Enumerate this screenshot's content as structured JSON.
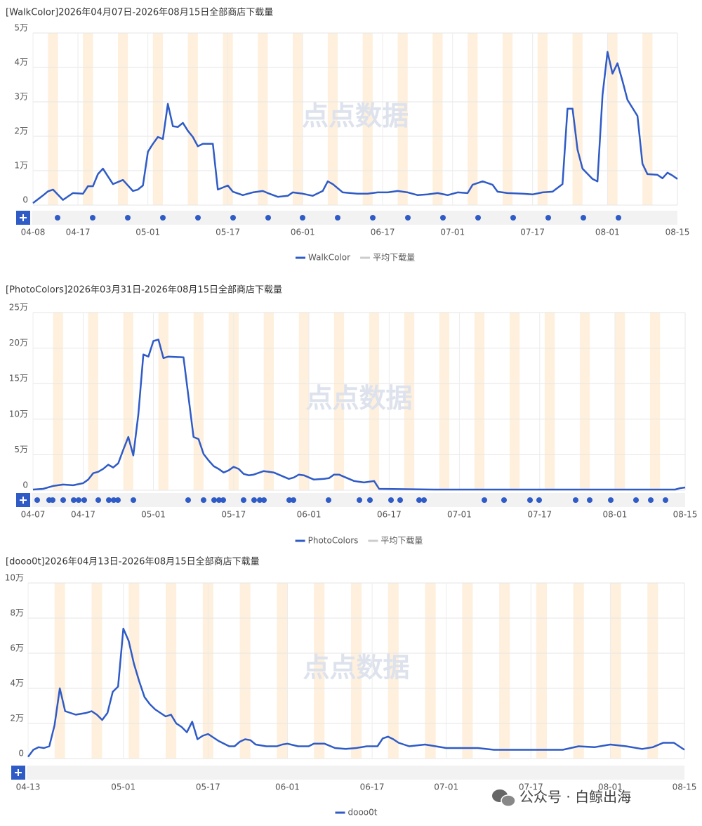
{
  "chart_data": [
    {
      "type": "line",
      "title": "[WalkColor]2026年04月07日-2026年08月15日全部商店下载量",
      "watermark": "点点数据",
      "x": [
        "04-08",
        "04-10",
        "04-11",
        "04-12",
        "04-14",
        "04-16",
        "04-18",
        "04-19",
        "04-20",
        "04-21",
        "04-22",
        "04-24",
        "04-26",
        "04-28",
        "04-29",
        "04-30",
        "05-01",
        "05-02",
        "05-03",
        "05-04",
        "05-05",
        "05-06",
        "05-07",
        "05-08",
        "05-09",
        "05-10",
        "05-11",
        "05-12",
        "05-14",
        "05-15",
        "05-17",
        "05-18",
        "05-20",
        "05-22",
        "05-24",
        "05-25",
        "05-27",
        "05-29",
        "05-30",
        "06-01",
        "06-03",
        "06-05",
        "06-06",
        "06-07",
        "06-09",
        "06-12",
        "06-14",
        "06-16",
        "06-18",
        "06-20",
        "06-22",
        "06-24",
        "06-26",
        "06-28",
        "06-30",
        "07-02",
        "07-04",
        "07-05",
        "07-07",
        "07-09",
        "07-10",
        "07-12",
        "07-15",
        "07-17",
        "07-19",
        "07-21",
        "07-23",
        "07-24",
        "07-25",
        "07-26",
        "07-27",
        "07-29",
        "07-30",
        "07-31",
        "08-01",
        "08-02",
        "08-03",
        "08-04",
        "08-05",
        "08-07",
        "08-08",
        "08-09",
        "08-11",
        "08-12",
        "08-13",
        "08-14",
        "08-15"
      ],
      "series": [
        {
          "name": "WalkColor",
          "color": "#2f5bc7",
          "values": [
            600,
            2800,
            4000,
            4500,
            1500,
            3500,
            3300,
            5500,
            5500,
            9000,
            10600,
            6100,
            7300,
            4100,
            4500,
            5700,
            15500,
            17800,
            19800,
            19200,
            29400,
            22900,
            22700,
            23900,
            21600,
            19800,
            17100,
            17800,
            17800,
            4500,
            5700,
            3900,
            2900,
            3700,
            4100,
            3500,
            2400,
            2700,
            3700,
            3300,
            2700,
            4100,
            6900,
            6100,
            3700,
            3300,
            3300,
            3700,
            3700,
            4100,
            3700,
            2900,
            3100,
            3500,
            2900,
            3700,
            3500,
            5900,
            6900,
            5900,
            3900,
            3500,
            3300,
            3100,
            3700,
            3900,
            6100,
            28000,
            28000,
            16100,
            10600,
            7600,
            6900,
            32000,
            44500,
            38200,
            41200,
            36100,
            30600,
            25900,
            12000,
            9000,
            8800,
            7800,
            9400,
            8600,
            7600
          ]
        }
      ],
      "legend_inactive": [
        {
          "name": "平均下载量",
          "color": "#cccccc"
        }
      ],
      "xlim": [
        "04-08",
        "08-15"
      ],
      "xticks": [
        "04-08",
        "04-17",
        "05-01",
        "05-17",
        "06-01",
        "06-17",
        "07-01",
        "07-17",
        "08-01",
        "08-15"
      ],
      "ylim": [
        0,
        50000
      ],
      "yticks": [
        0,
        {
          "value": 10000,
          "label": "1万"
        },
        {
          "value": 20000,
          "label": "2万"
        },
        {
          "value": 30000,
          "label": "3万"
        },
        {
          "value": 40000,
          "label": "4万"
        },
        {
          "value": 50000,
          "label": "5万"
        }
      ],
      "grid": true
    },
    {
      "type": "line",
      "title": "[PhotoColors]2026年03月31日-2026年08月15日全部商店下载量",
      "watermark": "点点数据",
      "x": [
        "04-07",
        "04-09",
        "04-11",
        "04-13",
        "04-15",
        "04-17",
        "04-18",
        "04-19",
        "04-20",
        "04-21",
        "04-22",
        "04-23",
        "04-24",
        "04-25",
        "04-26",
        "04-27",
        "04-28",
        "04-29",
        "04-30",
        "05-01",
        "05-02",
        "05-03",
        "05-04",
        "05-07",
        "05-09",
        "05-10",
        "05-11",
        "05-12",
        "05-13",
        "05-14",
        "05-15",
        "05-16",
        "05-17",
        "05-18",
        "05-19",
        "05-20",
        "05-21",
        "05-23",
        "05-25",
        "05-27",
        "05-28",
        "05-29",
        "05-30",
        "05-31",
        "06-02",
        "06-04",
        "06-05",
        "06-06",
        "06-07",
        "06-08",
        "06-10",
        "06-12",
        "06-14",
        "06-15",
        "06-26",
        "07-16",
        "08-05",
        "08-13",
        "08-14",
        "08-15"
      ],
      "series": [
        {
          "name": "PhotoColors",
          "color": "#2f5bc7",
          "values": [
            1000,
            2000,
            6000,
            8000,
            7000,
            10000,
            15000,
            24000,
            26000,
            30000,
            36000,
            32000,
            38000,
            57000,
            75000,
            49000,
            107000,
            191000,
            188000,
            210000,
            212000,
            186000,
            188000,
            187000,
            75000,
            72000,
            51000,
            42000,
            34000,
            30000,
            25000,
            28000,
            33000,
            30000,
            23000,
            21000,
            22000,
            27000,
            25000,
            19000,
            16000,
            18000,
            22000,
            21000,
            15000,
            16000,
            17000,
            22000,
            22000,
            19000,
            13000,
            11000,
            13000,
            2000,
            1000,
            1000,
            1000,
            1000,
            3000,
            4000
          ]
        }
      ],
      "legend_inactive": [
        {
          "name": "平均下载量",
          "color": "#cccccc"
        }
      ],
      "xlim": [
        "04-07",
        "08-15"
      ],
      "xticks": [
        "04-07",
        "04-17",
        "05-01",
        "05-17",
        "06-01",
        "06-17",
        "07-01",
        "07-17",
        "08-01",
        "08-15"
      ],
      "ylim": [
        0,
        250000
      ],
      "yticks": [
        0,
        {
          "value": 50000,
          "label": "5万"
        },
        {
          "value": 100000,
          "label": "10万"
        },
        {
          "value": 150000,
          "label": "15万"
        },
        {
          "value": 200000,
          "label": "20万"
        },
        {
          "value": 250000,
          "label": "25万"
        }
      ],
      "grid": true
    },
    {
      "type": "line",
      "title": "[dooo0t]2026年04月13日-2026年08月15日全部商店下载量",
      "watermark": "点点数据",
      "x": [
        "04-13",
        "04-14",
        "04-15",
        "04-16",
        "04-17",
        "04-18",
        "04-19",
        "04-20",
        "04-21",
        "04-22",
        "04-24",
        "04-25",
        "04-26",
        "04-27",
        "04-28",
        "04-29",
        "04-30",
        "05-01",
        "05-02",
        "05-03",
        "05-04",
        "05-05",
        "05-06",
        "05-07",
        "05-08",
        "05-09",
        "05-10",
        "05-11",
        "05-12",
        "05-13",
        "05-14",
        "05-15",
        "05-16",
        "05-17",
        "05-19",
        "05-21",
        "05-22",
        "05-23",
        "05-24",
        "05-25",
        "05-26",
        "05-28",
        "05-30",
        "05-31",
        "06-01",
        "06-03",
        "06-05",
        "06-06",
        "06-08",
        "06-10",
        "06-12",
        "06-14",
        "06-16",
        "06-18",
        "06-19",
        "06-20",
        "06-21",
        "06-22",
        "06-24",
        "06-27",
        "06-29",
        "07-01",
        "07-04",
        "07-07",
        "07-10",
        "07-14",
        "07-17",
        "07-20",
        "07-23",
        "07-26",
        "07-29",
        "08-01",
        "08-04",
        "08-07",
        "08-09",
        "08-11",
        "08-13",
        "08-15"
      ],
      "series": [
        {
          "name": "dooo0t",
          "color": "#2f5bc7",
          "values": [
            1000,
            5000,
            6500,
            6000,
            7000,
            19000,
            40000,
            27000,
            26000,
            25000,
            26000,
            27000,
            25000,
            22000,
            26000,
            38000,
            41000,
            74000,
            67000,
            54000,
            44000,
            35000,
            31000,
            28000,
            26000,
            24000,
            25000,
            20000,
            18000,
            15000,
            21000,
            11000,
            13000,
            14000,
            10000,
            7000,
            7000,
            9600,
            11000,
            10500,
            8000,
            7000,
            7000,
            8000,
            8500,
            7000,
            7000,
            8500,
            8500,
            6000,
            5500,
            6000,
            7000,
            7000,
            11500,
            12500,
            11000,
            9000,
            7000,
            8000,
            7000,
            6000,
            6000,
            6000,
            5000,
            5000,
            5000,
            5000,
            5000,
            7000,
            6500,
            8000,
            7000,
            5500,
            6500,
            9000,
            9000,
            5000
          ]
        }
      ],
      "xlim": [
        "04-13",
        "08-15"
      ],
      "xticks": [
        "04-13",
        "05-01",
        "05-17",
        "06-01",
        "06-17",
        "07-01",
        "07-17",
        "08-01",
        "08-15"
      ],
      "ylim": [
        0,
        100000
      ],
      "yticks": [
        0,
        {
          "value": 20000,
          "label": "2万"
        },
        {
          "value": 40000,
          "label": "4万"
        },
        {
          "value": 60000,
          "label": "6万"
        },
        {
          "value": 80000,
          "label": "8万"
        },
        {
          "value": 100000,
          "label": "10万"
        }
      ],
      "grid": true
    }
  ],
  "watermark": "公众号 · 白鲸出海"
}
